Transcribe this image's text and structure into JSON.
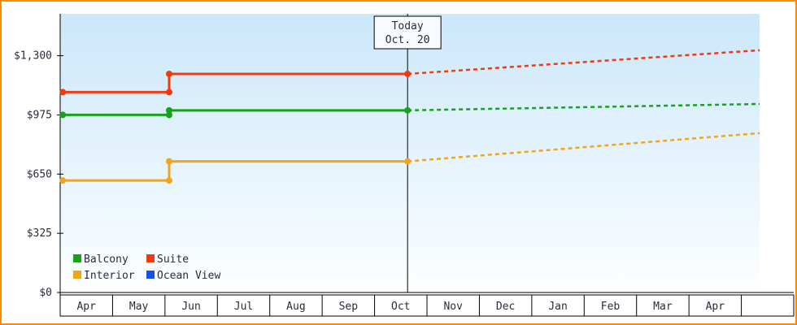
{
  "page": {
    "border_color": "#ff8a00",
    "background": "#ffffff"
  },
  "chart_data": {
    "type": "line",
    "title": "",
    "y_axis": {
      "max": 1530,
      "ticks": [
        {
          "value": 0,
          "label": "$0"
        },
        {
          "value": 325,
          "label": "$325"
        },
        {
          "value": 650,
          "label": "$650"
        },
        {
          "value": 975,
          "label": "$975"
        },
        {
          "value": 1300,
          "label": "$1,300"
        }
      ]
    },
    "x_axis": {
      "months": [
        "Apr",
        "May",
        "Jun",
        "Jul",
        "Aug",
        "Sep",
        "Oct",
        "Nov",
        "Dec",
        "Jan",
        "Feb",
        "Mar",
        "Apr",
        ""
      ]
    },
    "today": {
      "label_line1": "Today",
      "label_line2": "Oct. 20",
      "x": 6.63
    },
    "series": [
      {
        "name": "Balcony",
        "color": "#1aa01a",
        "solid": [
          [
            0.05,
            975
          ],
          [
            2.08,
            975
          ],
          [
            2.08,
            1000
          ],
          [
            6.63,
            1000
          ]
        ],
        "dashed": [
          [
            6.63,
            1000
          ],
          [
            13.35,
            1035
          ]
        ],
        "markers": [
          [
            0.05,
            975
          ],
          [
            2.08,
            975
          ],
          [
            2.08,
            1000
          ],
          [
            6.63,
            1000
          ]
        ]
      },
      {
        "name": "Suite",
        "color": "#ee3c10",
        "solid": [
          [
            0.05,
            1100
          ],
          [
            2.08,
            1100
          ],
          [
            2.08,
            1200
          ],
          [
            6.63,
            1200
          ]
        ],
        "dashed": [
          [
            6.63,
            1200
          ],
          [
            13.35,
            1330
          ]
        ],
        "markers": [
          [
            0.05,
            1100
          ],
          [
            2.08,
            1100
          ],
          [
            2.08,
            1200
          ],
          [
            6.63,
            1200
          ]
        ]
      },
      {
        "name": "Interior",
        "color": "#f2a519",
        "solid": [
          [
            0.05,
            615
          ],
          [
            2.08,
            615
          ],
          [
            2.08,
            720
          ],
          [
            6.63,
            720
          ]
        ],
        "dashed": [
          [
            6.63,
            720
          ],
          [
            13.35,
            875
          ]
        ],
        "markers": [
          [
            0.05,
            615
          ],
          [
            2.08,
            615
          ],
          [
            2.08,
            720
          ],
          [
            6.63,
            720
          ]
        ]
      },
      {
        "name": "Ocean View",
        "color": "#1453e8",
        "solid": [],
        "dashed": [],
        "markers": []
      }
    ],
    "legend": {
      "position": "bottom-left",
      "entries": [
        "Balcony",
        "Suite",
        "Interior",
        "Ocean View"
      ]
    },
    "plot_bg_gradient": [
      "#cbe7fa",
      "#fdffff"
    ],
    "grid": "off"
  }
}
